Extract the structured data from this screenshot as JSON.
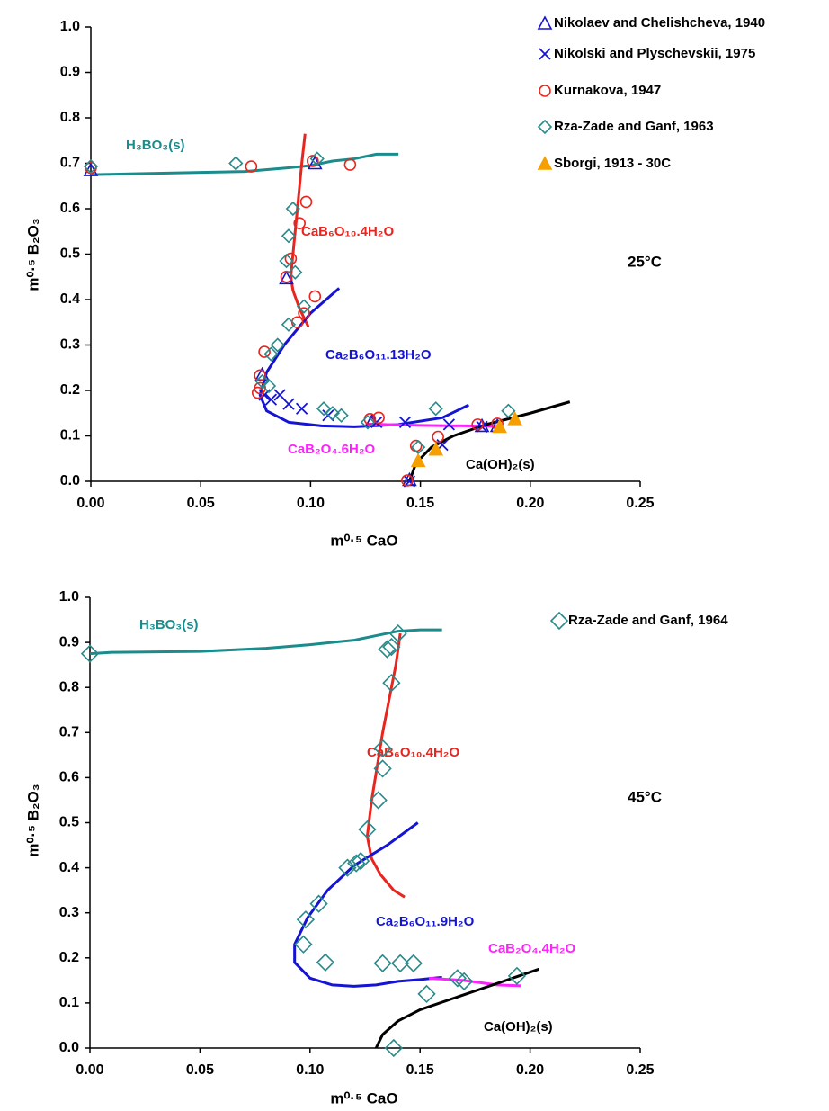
{
  "chart_data": [
    {
      "type": "scatter",
      "xlabel": "m⁰·⁵ CaO",
      "ylabel": "m⁰·⁵ B₂O₃",
      "note": "25°C",
      "xlim": [
        0,
        0.25
      ],
      "xticks": [
        {
          "value": 0,
          "label": "0.00"
        },
        0.05,
        {
          "value": 0.1,
          "label": "0.10"
        },
        0.15,
        {
          "value": 0.2,
          "label": "0.20"
        },
        0.25
      ],
      "ylim": [
        0,
        1
      ],
      "yticks": [
        {
          "value": 0,
          "label": "0.0"
        },
        0.1,
        0.2,
        0.3,
        0.4,
        0.5,
        0.6,
        0.7,
        0.8,
        0.9,
        {
          "value": 1,
          "label": "1.0"
        }
      ],
      "series": [
        {
          "label": "H₃BO₃(s)",
          "kind": "line",
          "color": "#1a8c8c",
          "x": [
            0,
            0.02,
            0.05,
            0.07,
            0.09,
            0.1,
            0.11,
            0.12,
            0.13,
            0.14
          ],
          "y": [
            0.675,
            0.677,
            0.68,
            0.682,
            0.69,
            0.695,
            0.705,
            0.71,
            0.72,
            0.72
          ]
        },
        {
          "label": "CaB₆O₁₀.4H₂O",
          "kind": "line",
          "color": "#e8251e",
          "x": [
            0.0975,
            0.096,
            0.094,
            0.092,
            0.091,
            0.092,
            0.095,
            0.099
          ],
          "y": [
            0.765,
            0.7,
            0.6,
            0.5,
            0.45,
            0.42,
            0.38,
            0.34
          ]
        },
        {
          "label": "Ca₂B₆O₁₁.13H₂O",
          "kind": "line",
          "color": "#1414d2",
          "x": [
            0.113,
            0.1,
            0.088,
            0.08,
            0.077,
            0.08,
            0.09,
            0.105,
            0.12,
            0.14,
            0.16,
            0.172
          ],
          "y": [
            0.425,
            0.37,
            0.3,
            0.24,
            0.19,
            0.155,
            0.13,
            0.122,
            0.12,
            0.125,
            0.14,
            0.168
          ]
        },
        {
          "label": "CaB₂O₄.6H₂O",
          "kind": "line",
          "color": "#ff22ff",
          "x": [
            0.125,
            0.15,
            0.17,
            0.185
          ],
          "y": [
            0.126,
            0.123,
            0.122,
            0.121
          ]
        },
        {
          "label": "Ca(OH)₂(s)",
          "kind": "line",
          "color": "#000000",
          "x": [
            0.145,
            0.148,
            0.155,
            0.165,
            0.18,
            0.2,
            0.218
          ],
          "y": [
            0,
            0.04,
            0.075,
            0.1,
            0.125,
            0.15,
            0.175
          ]
        },
        {
          "name": "Nikolaev and Chelishcheva, 1940",
          "kind": "point",
          "marker": "triangle",
          "color": "#1414d2",
          "x": [
            0,
            0.102,
            0.089,
            0.078,
            0.128,
            0.145,
            0.178,
            0.185
          ],
          "y": [
            0.685,
            0.7,
            0.447,
            0.235,
            0.133,
            0.003,
            0.122,
            0.122
          ]
        },
        {
          "name": "Nikolski and Plyschevskii, 1975",
          "kind": "point",
          "marker": "cross",
          "color": "#1414d2",
          "x": [
            0.079,
            0.082,
            0.086,
            0.09,
            0.096,
            0.108,
            0.13,
            0.143,
            0.163,
            0.16,
            0.145,
            0.178
          ],
          "y": [
            0.19,
            0.18,
            0.19,
            0.17,
            0.16,
            0.145,
            0.13,
            0.13,
            0.125,
            0.08,
            0,
            0.12
          ]
        },
        {
          "name": "Kurnakova, 1947",
          "kind": "point",
          "marker": "circle",
          "color": "#e8251e",
          "x": [
            0,
            0.073,
            0.101,
            0.118,
            0.098,
            0.095,
            0.091,
            0.089,
            0.102,
            0.094,
            0.097,
            0.079,
            0.077,
            0.077,
            0.076,
            0.127,
            0.131,
            0.158,
            0.148,
            0.144,
            0.176,
            0.185
          ],
          "y": [
            0.69,
            0.693,
            0.705,
            0.697,
            0.615,
            0.568,
            0.49,
            0.45,
            0.407,
            0.35,
            0.37,
            0.285,
            0.233,
            0.205,
            0.195,
            0.137,
            0.14,
            0.098,
            0.078,
            0.002,
            0.125,
            0.127
          ]
        },
        {
          "name": "Rza-Zade and Ganf, 1963",
          "kind": "point",
          "marker": "diamond",
          "color": "#2a8a8a",
          "x": [
            0,
            0.066,
            0.103,
            0.092,
            0.09,
            0.089,
            0.093,
            0.097,
            0.09,
            0.085,
            0.082,
            0.078,
            0.081,
            0.106,
            0.11,
            0.114,
            0.157,
            0.149,
            0.19,
            0.126
          ],
          "y": [
            0.693,
            0.7,
            0.71,
            0.6,
            0.54,
            0.485,
            0.46,
            0.385,
            0.345,
            0.3,
            0.28,
            0.22,
            0.21,
            0.16,
            0.15,
            0.145,
            0.16,
            0.075,
            0.155,
            0.13
          ]
        },
        {
          "name": "Sborgi, 1913 - 30C",
          "kind": "point",
          "marker": "filled-triangle",
          "color": "#f5a000",
          "x": [
            0.149,
            0.157,
            0.186,
            0.193
          ],
          "y": [
            0.045,
            0.07,
            0.12,
            0.137
          ]
        }
      ]
    },
    {
      "type": "scatter",
      "xlabel": "m⁰·⁵ CaO",
      "ylabel": "m⁰·⁵ B₂O₃",
      "note": "45°C",
      "xlim": [
        0,
        0.25
      ],
      "xticks": [
        {
          "value": 0,
          "label": "0.00"
        },
        0.05,
        {
          "value": 0.1,
          "label": "0.10"
        },
        0.15,
        {
          "value": 0.2,
          "label": "0.20"
        },
        0.25
      ],
      "ylim": [
        0,
        1
      ],
      "yticks": [
        {
          "value": 0,
          "label": "0.0"
        },
        0.1,
        0.2,
        0.3,
        0.4,
        0.5,
        0.6,
        0.7,
        0.8,
        0.9,
        {
          "value": 1,
          "label": "1.0"
        }
      ],
      "series": [
        {
          "label": "H₃BO₃(s)",
          "kind": "line",
          "color": "#1a8c8c",
          "x": [
            0,
            0.01,
            0.05,
            0.08,
            0.1,
            0.12,
            0.13,
            0.14,
            0.15,
            0.16
          ],
          "y": [
            0.875,
            0.878,
            0.88,
            0.887,
            0.895,
            0.905,
            0.915,
            0.925,
            0.928,
            0.928
          ]
        },
        {
          "label": "CaB₆O₁₀.4H₂O",
          "kind": "line",
          "color": "#e8251e",
          "x": [
            0.141,
            0.139,
            0.133,
            0.128,
            0.126,
            0.128,
            0.132,
            0.138,
            0.143
          ],
          "y": [
            0.92,
            0.85,
            0.7,
            0.55,
            0.47,
            0.42,
            0.385,
            0.35,
            0.335
          ]
        },
        {
          "label": "Ca₂B₆O₁₁.9H₂O",
          "kind": "line",
          "color": "#1414d2",
          "x": [
            0.149,
            0.135,
            0.12,
            0.108,
            0.099,
            0.093,
            0.093,
            0.1,
            0.11,
            0.12,
            0.13,
            0.14,
            0.15,
            0.16
          ],
          "y": [
            0.5,
            0.45,
            0.405,
            0.35,
            0.29,
            0.23,
            0.19,
            0.155,
            0.14,
            0.137,
            0.14,
            0.148,
            0.152,
            0.157
          ]
        },
        {
          "label": "CaB₂O₄.4H₂O",
          "kind": "line",
          "color": "#ff22ff",
          "x": [
            0.154,
            0.17,
            0.185,
            0.196
          ],
          "y": [
            0.155,
            0.15,
            0.14,
            0.138
          ]
        },
        {
          "label": "Ca(OH)₂(s)",
          "kind": "line",
          "color": "#000000",
          "x": [
            0.13,
            0.133,
            0.14,
            0.15,
            0.165,
            0.18,
            0.195,
            0.204
          ],
          "y": [
            0,
            0.03,
            0.06,
            0.085,
            0.11,
            0.135,
            0.16,
            0.175
          ]
        },
        {
          "name": "Rza-Zade and Ganf, 1964",
          "kind": "point",
          "marker": "diamond",
          "color": "#2a8a8a",
          "x": [
            0,
            0.14,
            0.135,
            0.137,
            0.137,
            0.133,
            0.133,
            0.131,
            0.126,
            0.117,
            0.121,
            0.123,
            0.104,
            0.098,
            0.097,
            0.107,
            0.133,
            0.141,
            0.147,
            0.153,
            0.167,
            0.17,
            0.194,
            0.138
          ],
          "y": [
            0.875,
            0.92,
            0.885,
            0.89,
            0.81,
            0.665,
            0.62,
            0.55,
            0.485,
            0.4,
            0.41,
            0.415,
            0.32,
            0.285,
            0.23,
            0.19,
            0.188,
            0.188,
            0.188,
            0.12,
            0.155,
            0.148,
            0.16,
            0
          ]
        }
      ]
    }
  ]
}
